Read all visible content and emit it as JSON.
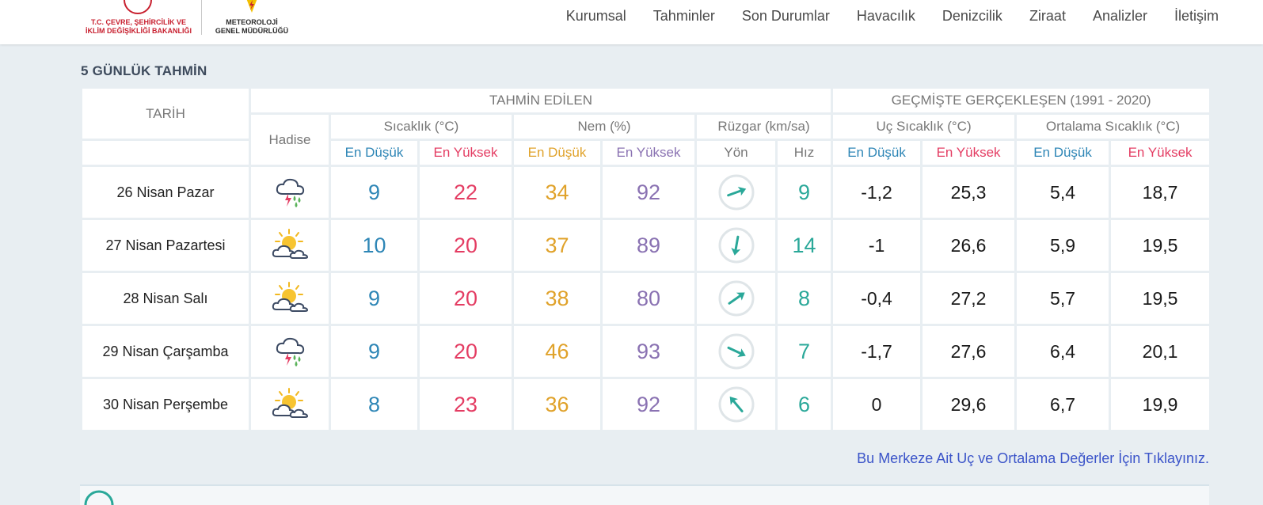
{
  "header": {
    "ministry_line1": "T.C. ÇEVRE, ŞEHİRCİLİK VE",
    "ministry_line2": "İKLİM DEĞİŞİKLİĞİ BAKANLIĞI",
    "mgm_line1": "METEOROLOJİ",
    "mgm_line2": "GENEL MÜDÜRLÜĞÜ"
  },
  "nav": [
    "Kurumsal",
    "Tahminler",
    "Son Durumlar",
    "Havacılık",
    "Denizcilik",
    "Ziraat",
    "Analizler",
    "İletişim"
  ],
  "section_title": "5 GÜNLÜK TAHMİN",
  "table": {
    "h_tarih": "TARİH",
    "h_tahmin": "TAHMİN EDİLEN",
    "h_gecmis": "GEÇMİŞTE GERÇEKLEŞEN (1991 - 2020)",
    "h_hadise": "Hadise",
    "h_sicaklik": "Sıcaklık (°C)",
    "h_nem": "Nem (%)",
    "h_ruzgar": "Rüzgar (km/sa)",
    "h_uc": "Uç Sıcaklık (°C)",
    "h_ort": "Ortalama Sıcaklık (°C)",
    "h_en_dusuk": "En Düşük",
    "h_en_yuksek": "En Yüksek",
    "h_yon": "Yön",
    "h_hiz": "Hız"
  },
  "rows": [
    {
      "date": "26 Nisan Pazar",
      "icon": "thunder-rain-icon",
      "t_min": "9",
      "t_max": "22",
      "h_min": "34",
      "h_max": "92",
      "wind_dir_deg": 70,
      "wind_speed": "9",
      "ext_min": "-1,2",
      "ext_max": "25,3",
      "avg_min": "5,4",
      "avg_max": "18,7"
    },
    {
      "date": "27 Nisan Pazartesi",
      "icon": "partly-cloudy-icon",
      "t_min": "10",
      "t_max": "20",
      "h_min": "37",
      "h_max": "89",
      "wind_dir_deg": 190,
      "wind_speed": "14",
      "ext_min": "-1",
      "ext_max": "26,6",
      "avg_min": "5,9",
      "avg_max": "19,5"
    },
    {
      "date": "28 Nisan Salı",
      "icon": "partly-cloudy-icon",
      "t_min": "9",
      "t_max": "20",
      "h_min": "38",
      "h_max": "80",
      "wind_dir_deg": 55,
      "wind_speed": "8",
      "ext_min": "-0,4",
      "ext_max": "27,2",
      "avg_min": "5,7",
      "avg_max": "19,5"
    },
    {
      "date": "29 Nisan Çarşamba",
      "icon": "thunder-rain-icon",
      "t_min": "9",
      "t_max": "20",
      "h_min": "46",
      "h_max": "93",
      "wind_dir_deg": 115,
      "wind_speed": "7",
      "ext_min": "-1,7",
      "ext_max": "27,6",
      "avg_min": "6,4",
      "avg_max": "20,1"
    },
    {
      "date": "30 Nisan Perşembe",
      "icon": "partly-cloudy-icon",
      "t_min": "8",
      "t_max": "23",
      "h_min": "36",
      "h_max": "92",
      "wind_dir_deg": 320,
      "wind_speed": "6",
      "ext_min": "0",
      "ext_max": "29,6",
      "avg_min": "6,7",
      "avg_max": "19,9"
    }
  ],
  "footer_link": "Bu Merkeze Ait Uç ve Ortalama Değerler İçin Tıklayınız."
}
